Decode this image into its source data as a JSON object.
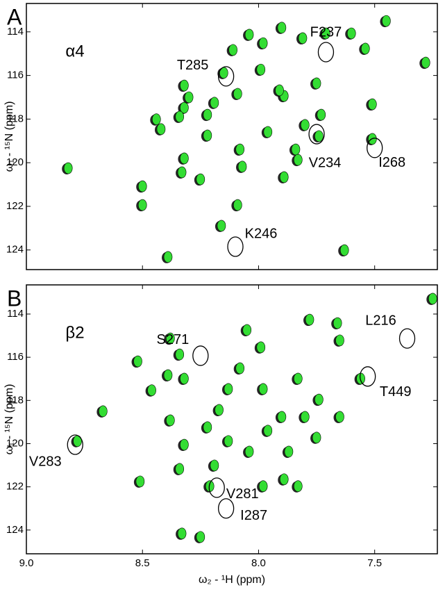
{
  "chart_data": [
    {
      "type": "scatter",
      "panel_label": "A",
      "subtitle": "α4",
      "y_label": "ω₁ - ¹⁵N  (ppm)",
      "xlim": [
        9.0,
        7.23
      ],
      "ylim": [
        112.7,
        124.9
      ],
      "xticks": [
        9,
        8.5,
        8,
        7.5
      ],
      "yticks": [
        114,
        116,
        118,
        120,
        122,
        124
      ],
      "color": "#33dd33",
      "edge_color": "#000000",
      "x": [
        8.82,
        8.42,
        8.5,
        8.5,
        8.44,
        8.32,
        8.34,
        8.32,
        8.3,
        8.22,
        8.19,
        8.15,
        8.09,
        8.11,
        8.04,
        7.98,
        7.9,
        7.89,
        7.99,
        7.91,
        7.81,
        7.71,
        7.75,
        7.73,
        7.74,
        7.89,
        7.8,
        7.6,
        7.54,
        7.51,
        7.51,
        7.45,
        7.28,
        8.39,
        8.07,
        8.32,
        8.22,
        8.08,
        7.96,
        7.84,
        8.33,
        8.25,
        8.09,
        7.83,
        8.16,
        7.63
      ],
      "values": [
        120.25,
        118.46,
        121.94,
        121.08,
        118.01,
        117.48,
        117.89,
        116.46,
        117.0,
        117.8,
        117.25,
        115.88,
        116.84,
        114.83,
        114.13,
        114.52,
        113.81,
        116.94,
        115.73,
        116.68,
        114.29,
        114.07,
        116.36,
        117.8,
        118.78,
        120.66,
        118.27,
        114.07,
        114.77,
        117.32,
        118.91,
        113.5,
        115.41,
        124.32,
        120.18,
        119.8,
        118.75,
        119.39,
        118.59,
        119.39,
        120.44,
        120.76,
        121.94,
        119.87,
        122.89,
        124.01
      ],
      "annotations": [
        {
          "text": "T285",
          "x": 8.14,
          "y": 116.04
        },
        {
          "text": "F237",
          "x": 7.71,
          "y": 114.93
        },
        {
          "text": "V234",
          "x": 7.75,
          "y": 118.69
        },
        {
          "text": "I268",
          "x": 7.5,
          "y": 119.32
        },
        {
          "text": "K246",
          "x": 8.1,
          "y": 123.85
        }
      ]
    },
    {
      "type": "scatter",
      "panel_label": "B",
      "subtitle": "β2",
      "y_label": "ω₁ - ¹⁵N  (ppm)",
      "x_label": "ω₂ - ¹H  (ppm)",
      "xlim": [
        9.0,
        7.23
      ],
      "ylim": [
        112.65,
        125.1
      ],
      "xticks": [
        {
          "value": 9,
          "label": "9.0"
        },
        8.5,
        {
          "value": 8,
          "label": "8.0"
        },
        7.5
      ],
      "yticks": [
        114,
        116,
        118,
        120,
        122,
        124
      ],
      "color": "#33dd33",
      "edge_color": "#000000",
      "x": [
        8.78,
        8.67,
        8.46,
        8.39,
        8.38,
        8.34,
        8.32,
        8.38,
        8.32,
        8.34,
        8.51,
        8.33,
        8.25,
        8.21,
        8.19,
        8.22,
        8.13,
        8.17,
        8.13,
        8.08,
        8.05,
        7.99,
        7.98,
        7.96,
        8.04,
        7.9,
        7.83,
        7.8,
        7.87,
        7.75,
        7.65,
        7.65,
        7.56,
        7.66,
        7.89,
        7.78,
        7.74,
        7.98,
        7.25,
        8.52,
        7.83
      ],
      "values": [
        119.88,
        118.5,
        117.53,
        116.83,
        115.13,
        115.87,
        116.99,
        118.92,
        120.05,
        121.17,
        121.75,
        124.16,
        124.32,
        121.97,
        121.01,
        119.24,
        119.88,
        118.44,
        117.47,
        116.51,
        114.74,
        115.54,
        117.47,
        119.4,
        120.37,
        118.76,
        116.99,
        118.76,
        120.37,
        119.72,
        118.76,
        115.22,
        116.99,
        114.42,
        121.65,
        114.26,
        117.96,
        121.97,
        113.29,
        116.19,
        121.97
      ],
      "annotations": [
        {
          "text": "S271",
          "x": 8.25,
          "y": 115.93
        },
        {
          "text": "L216",
          "x": 7.36,
          "y": 115.13
        },
        {
          "text": "T449",
          "x": 7.53,
          "y": 116.89
        },
        {
          "text": "V283",
          "x": 8.79,
          "y": 120.05
        },
        {
          "text": "V281",
          "x": 8.18,
          "y": 122.04
        },
        {
          "text": "I287",
          "x": 8.14,
          "y": 123.0
        }
      ]
    }
  ]
}
